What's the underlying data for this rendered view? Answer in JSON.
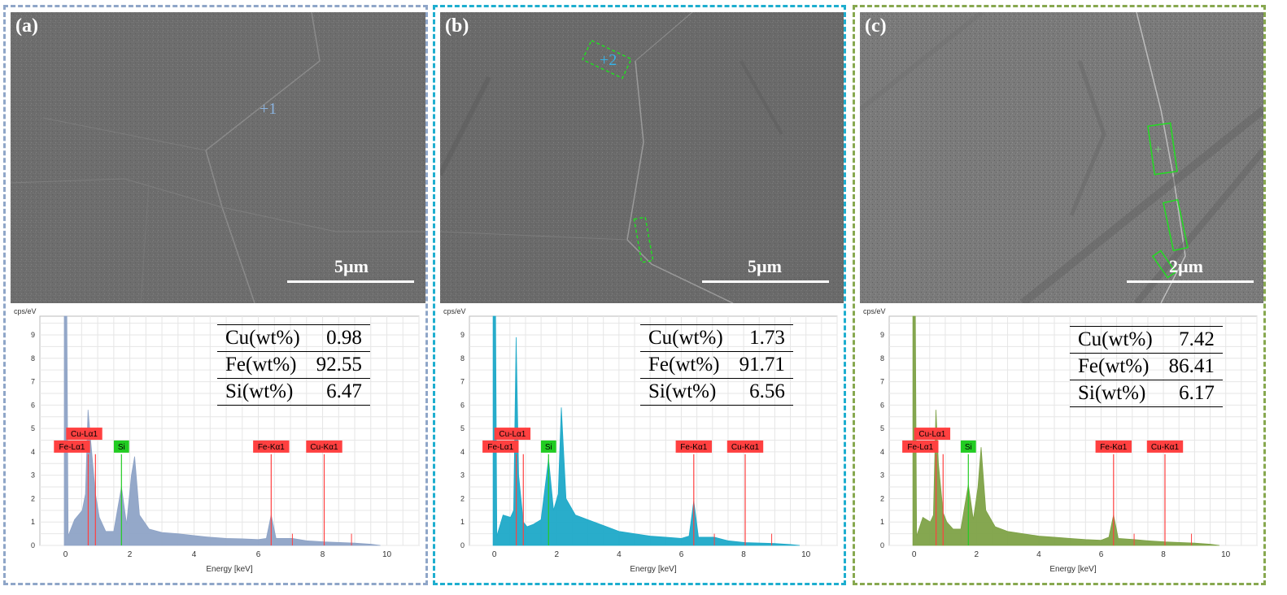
{
  "panels": [
    {
      "label": "(a)",
      "border_color": "#8fa6c8",
      "fill_color": "#8ea3c6",
      "scale_label": "5µm",
      "point_label": "+1",
      "point_color": "#8cb4e0",
      "composition": [
        {
          "name": "Cu(wt%)",
          "value": "0.98"
        },
        {
          "name": "Fe(wt%)",
          "value": "92.55"
        },
        {
          "name": "Si(wt%)",
          "value": "6.47"
        }
      ]
    },
    {
      "label": "(b)",
      "border_color": "#1eaecf",
      "fill_color": "#1ea9c8",
      "scale_label": "5µm",
      "point_label": "+2",
      "point_color": "#37b3e8",
      "composition": [
        {
          "name": "Cu(wt%)",
          "value": "1.73"
        },
        {
          "name": "Fe(wt%)",
          "value": "91.71"
        },
        {
          "name": "Si(wt%)",
          "value": "6.56"
        }
      ]
    },
    {
      "label": "(c)",
      "border_color": "#87a84f",
      "fill_color": "#7ea247",
      "scale_label": "2µm",
      "point_label": "",
      "point_color": "#7fd27f",
      "composition": [
        {
          "name": "Cu(wt%)",
          "value": "7.42"
        },
        {
          "name": "Fe(wt%)",
          "value": "86.41"
        },
        {
          "name": "Si(wt%)",
          "value": "6.17"
        }
      ]
    }
  ],
  "axis": {
    "ylabel": "cps/eV",
    "xlabel": "Energy [keV]",
    "xticks": [
      "0",
      "2",
      "4",
      "6",
      "8",
      "10"
    ],
    "yticks": [
      "0",
      "1",
      "2",
      "3",
      "4",
      "5",
      "6",
      "7",
      "8",
      "9"
    ]
  },
  "chart_data": [
    {
      "type": "area",
      "panel": "(a)",
      "xlabel": "Energy [keV]",
      "ylabel": "cps/eV",
      "xlim": [
        -0.8,
        11
      ],
      "ylim": [
        0,
        9.8
      ],
      "grid": true,
      "series": [
        {
          "x": [
            0,
            0.28,
            0.52,
            0.62,
            0.7,
            0.78,
            0.93,
            1.05,
            1.25,
            1.5,
            1.74,
            1.9,
            2.05,
            2.15,
            2.3,
            2.6,
            3.0,
            3.5,
            4.0,
            4.5,
            5.0,
            5.5,
            6.0,
            6.25,
            6.4,
            6.55,
            7.06,
            7.5,
            8.05,
            9.0,
            9.5
          ],
          "y": [
            9.8,
            1.1,
            1.5,
            2.2,
            5.8,
            4.5,
            2.2,
            1.2,
            0.6,
            0.6,
            2.5,
            0.9,
            3.0,
            3.8,
            1.3,
            0.7,
            0.55,
            0.5,
            0.42,
            0.35,
            0.3,
            0.28,
            0.25,
            0.3,
            1.3,
            0.3,
            0.3,
            0.2,
            0.15,
            0.1,
            0.05
          ]
        }
      ],
      "peak_markers": [
        {
          "label": "Cu-Lα1",
          "energy": 0.93,
          "height": 3.9,
          "color": "#ff4040"
        },
        {
          "label": "Fe-Lα1",
          "energy": 0.705,
          "height": 3.9,
          "color": "#ff4040"
        },
        {
          "label": "Si",
          "energy": 1.74,
          "height": 3.9,
          "color": "#22cc22"
        },
        {
          "label": "Fe-Kα1",
          "energy": 6.4,
          "height": 3.9,
          "color": "#ff4040"
        },
        {
          "label": "Cu-Kα1",
          "energy": 8.05,
          "height": 3.9,
          "color": "#ff4040"
        }
      ]
    },
    {
      "type": "area",
      "panel": "(b)",
      "xlabel": "Energy [keV]",
      "ylabel": "cps/eV",
      "xlim": [
        -0.8,
        11
      ],
      "ylim": [
        0,
        9.8
      ],
      "grid": true,
      "series": [
        {
          "x": [
            0,
            0.28,
            0.52,
            0.62,
            0.7,
            0.78,
            0.93,
            1.05,
            1.25,
            1.5,
            1.74,
            1.9,
            2.05,
            2.15,
            2.3,
            2.6,
            3.0,
            3.5,
            4.0,
            4.5,
            5.0,
            5.5,
            6.0,
            6.25,
            6.4,
            6.55,
            7.06,
            7.5,
            8.05,
            9.0,
            9.5
          ],
          "y": [
            9.8,
            1.3,
            1.2,
            1.5,
            8.9,
            3.0,
            1.0,
            0.8,
            0.9,
            1.1,
            3.7,
            1.5,
            2.2,
            5.9,
            2.0,
            1.3,
            1.1,
            0.85,
            0.6,
            0.5,
            0.4,
            0.35,
            0.3,
            0.4,
            1.9,
            0.35,
            0.35,
            0.2,
            0.12,
            0.08,
            0.04
          ]
        }
      ],
      "peak_markers": [
        {
          "label": "Cu-Lα1",
          "energy": 0.93,
          "height": 3.9,
          "color": "#ff4040"
        },
        {
          "label": "Fe-Lα1",
          "energy": 0.705,
          "height": 3.9,
          "color": "#ff4040"
        },
        {
          "label": "Si",
          "energy": 1.74,
          "height": 3.9,
          "color": "#22cc22"
        },
        {
          "label": "Fe-Kα1",
          "energy": 6.4,
          "height": 3.9,
          "color": "#ff4040"
        },
        {
          "label": "Cu-Kα1",
          "energy": 8.05,
          "height": 3.9,
          "color": "#ff4040"
        }
      ]
    },
    {
      "type": "area",
      "panel": "(c)",
      "xlabel": "Energy [keV]",
      "ylabel": "cps/eV",
      "xlim": [
        -0.8,
        11
      ],
      "ylim": [
        0,
        9.8
      ],
      "grid": true,
      "series": [
        {
          "x": [
            0,
            0.28,
            0.52,
            0.62,
            0.7,
            0.78,
            0.93,
            1.05,
            1.25,
            1.5,
            1.74,
            1.9,
            2.05,
            2.15,
            2.3,
            2.6,
            3.0,
            3.5,
            4.0,
            4.5,
            5.0,
            5.5,
            6.0,
            6.25,
            6.4,
            6.55,
            7.06,
            7.5,
            8.05,
            9.0,
            9.5
          ],
          "y": [
            9.8,
            1.2,
            1.0,
            1.3,
            5.8,
            3.5,
            1.4,
            1.0,
            0.7,
            0.7,
            2.6,
            1.1,
            2.5,
            4.2,
            1.5,
            0.8,
            0.6,
            0.5,
            0.4,
            0.35,
            0.3,
            0.25,
            0.22,
            0.35,
            1.3,
            0.3,
            0.25,
            0.2,
            0.15,
            0.1,
            0.05
          ]
        }
      ],
      "peak_markers": [
        {
          "label": "Cu-Lα1",
          "energy": 0.93,
          "height": 3.9,
          "color": "#ff4040"
        },
        {
          "label": "Fe-Lα1",
          "energy": 0.705,
          "height": 3.9,
          "color": "#ff4040"
        },
        {
          "label": "Si",
          "energy": 1.74,
          "height": 3.9,
          "color": "#22cc22"
        },
        {
          "label": "Fe-Kα1",
          "energy": 6.4,
          "height": 3.9,
          "color": "#ff4040"
        },
        {
          "label": "Cu-Kα1",
          "energy": 8.05,
          "height": 3.9,
          "color": "#ff4040"
        }
      ]
    }
  ]
}
